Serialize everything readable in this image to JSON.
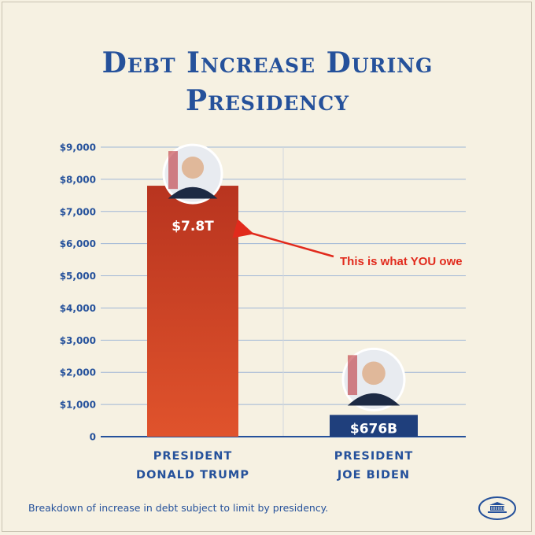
{
  "title_line1": "Debt Increase During",
  "title_line2": "Presidency",
  "caption": "Breakdown of increase in debt subject to limit by presidency.",
  "annotation": "This is what YOU owe",
  "colors": {
    "title": "#25519b",
    "trump_bar_top": "#b8341f",
    "trump_bar_bottom": "#e0532c",
    "biden_bar": "#1f3f7c",
    "annotation": "#e12a1c",
    "grid": "#9fb6d6"
  },
  "icons": {
    "trump_photo": "portrait-icon",
    "biden_photo": "portrait-icon",
    "logo": "white-house-icon"
  },
  "chart_data": {
    "type": "bar",
    "categories": [
      [
        "PRESIDENT",
        "DONALD TRUMP"
      ],
      [
        "PRESIDENT",
        "JOE BIDEN"
      ]
    ],
    "values": [
      7800,
      676
    ],
    "value_labels": [
      "$7.8T",
      "$676B"
    ],
    "yticks": [
      "0",
      "$1,000",
      "$2,000",
      "$3,000",
      "$4,000",
      "$5,000",
      "$6,000",
      "$7,000",
      "$8,000",
      "$9,000"
    ],
    "ylim": [
      0,
      9000
    ],
    "grid": true
  }
}
